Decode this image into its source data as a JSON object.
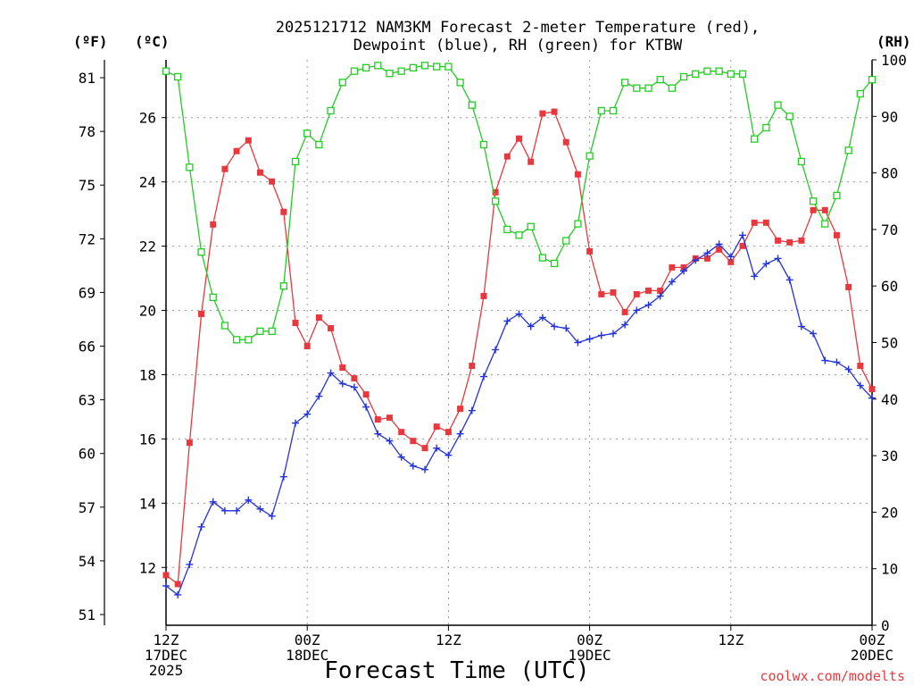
{
  "chart_data": {
    "type": "line",
    "title": [
      "2025121712 NAM3KM Forecast 2-meter Temperature (red),",
      "Dewpoint (blue), RH (green) for KTBW"
    ],
    "xlabel": "Forecast Time (UTC)",
    "watermark": "coolwx.com/modelts",
    "axis_units": {
      "fahrenheit": "(ºF)",
      "celsius": "(ºC)",
      "rh": "(RH)"
    },
    "x_range_hours": [
      0,
      60
    ],
    "x_ticks": [
      {
        "hour": 0,
        "lines": [
          "12Z",
          "17DEC",
          "2025"
        ]
      },
      {
        "hour": 12,
        "lines": [
          "00Z",
          "18DEC"
        ]
      },
      {
        "hour": 24,
        "lines": [
          "12Z"
        ]
      },
      {
        "hour": 36,
        "lines": [
          "00Z",
          "19DEC"
        ]
      },
      {
        "hour": 48,
        "lines": [
          "12Z"
        ]
      },
      {
        "hour": 60,
        "lines": [
          "00Z",
          "20DEC"
        ]
      }
    ],
    "y_left_f": {
      "range": [
        50.4,
        82.0
      ],
      "ticks": [
        51,
        54,
        57,
        60,
        63,
        66,
        69,
        72,
        75,
        78,
        81
      ]
    },
    "y_left_c": {
      "range": [
        10.2,
        27.8
      ],
      "ticks": [
        12,
        14,
        16,
        18,
        20,
        22,
        24,
        26
      ]
    },
    "y_right_rh": {
      "range": [
        0,
        100
      ],
      "ticks": [
        0,
        10,
        20,
        30,
        40,
        50,
        60,
        70,
        80,
        90,
        100
      ]
    },
    "grid": true,
    "series": [
      {
        "name": "Temperature",
        "color": "#e8383d",
        "units": "F",
        "marker": "filled-square",
        "x": [
          0,
          1,
          2,
          3,
          4,
          5,
          6,
          7,
          8,
          9,
          10,
          11,
          12,
          13,
          14,
          15,
          16,
          17,
          18,
          19,
          20,
          21,
          22,
          23,
          24,
          25,
          26,
          27,
          28,
          29,
          30,
          31,
          32,
          33,
          34,
          35,
          36,
          37,
          38,
          39,
          40,
          41,
          42,
          43,
          44,
          45,
          46,
          47,
          48,
          49,
          50,
          51,
          52,
          53,
          54,
          55,
          56,
          57,
          58,
          59,
          60
        ],
        "values": [
          53.2,
          52.7,
          60.6,
          67.8,
          72.8,
          75.9,
          76.9,
          77.5,
          75.7,
          75.2,
          73.5,
          67.3,
          66.0,
          67.6,
          67.0,
          64.8,
          64.2,
          63.3,
          61.9,
          62.0,
          61.2,
          60.7,
          60.3,
          61.5,
          61.2,
          62.5,
          64.9,
          68.8,
          74.6,
          76.6,
          77.6,
          76.3,
          79.0,
          79.1,
          77.4,
          75.6,
          71.3,
          68.9,
          69.0,
          67.9,
          68.9,
          69.1,
          69.1,
          70.4,
          70.4,
          70.9,
          70.9,
          71.4,
          70.7,
          71.6,
          72.9,
          72.9,
          71.9,
          71.8,
          71.9,
          73.6,
          73.6,
          72.2,
          69.3,
          64.9,
          63.6
        ]
      },
      {
        "name": "Dewpoint",
        "color": "#2233dd",
        "units": "F",
        "marker": "plus",
        "x": [
          0,
          1,
          2,
          3,
          4,
          5,
          6,
          7,
          8,
          9,
          10,
          11,
          12,
          13,
          14,
          15,
          16,
          17,
          18,
          19,
          20,
          21,
          22,
          23,
          24,
          25,
          26,
          27,
          28,
          29,
          30,
          31,
          32,
          33,
          34,
          35,
          36,
          37,
          38,
          39,
          40,
          41,
          42,
          43,
          44,
          45,
          46,
          47,
          48,
          49,
          50,
          51,
          52,
          53,
          54,
          55,
          56,
          57,
          58,
          59,
          60
        ],
        "values": [
          52.6,
          52.1,
          53.8,
          55.9,
          57.3,
          56.8,
          56.8,
          57.4,
          56.9,
          56.5,
          58.7,
          61.7,
          62.2,
          63.2,
          64.5,
          63.9,
          63.7,
          62.6,
          61.1,
          60.7,
          59.8,
          59.3,
          59.1,
          60.3,
          59.9,
          61.1,
          62.4,
          64.3,
          65.8,
          67.4,
          67.8,
          67.1,
          67.6,
          67.1,
          67.0,
          66.2,
          66.4,
          66.6,
          66.7,
          67.2,
          68.0,
          68.3,
          68.8,
          69.6,
          70.2,
          70.8,
          71.2,
          71.7,
          71.0,
          72.2,
          69.9,
          70.6,
          70.9,
          69.7,
          67.1,
          66.7,
          65.2,
          65.1,
          64.7,
          63.8,
          63.1
        ]
      },
      {
        "name": "RH",
        "color": "#22cc22",
        "units": "%",
        "marker": "open-square",
        "x": [
          0,
          1,
          2,
          3,
          4,
          5,
          6,
          7,
          8,
          9,
          10,
          11,
          12,
          13,
          14,
          15,
          16,
          17,
          18,
          19,
          20,
          21,
          22,
          23,
          24,
          25,
          26,
          27,
          28,
          29,
          30,
          31,
          32,
          33,
          34,
          35,
          36,
          37,
          38,
          39,
          40,
          41,
          42,
          43,
          44,
          45,
          46,
          47,
          48,
          49,
          50,
          51,
          52,
          53,
          54,
          55,
          56,
          57,
          58,
          59,
          60
        ],
        "values": [
          98,
          97,
          81,
          66,
          58,
          53,
          50.5,
          50.5,
          52,
          52,
          60,
          82,
          87,
          85,
          91,
          96,
          98,
          98.6,
          99,
          97.6,
          98,
          98.6,
          99,
          98.8,
          98.8,
          96,
          92,
          85,
          75,
          70,
          69,
          70.5,
          65,
          64,
          68,
          71,
          83,
          91,
          91,
          96,
          95,
          95,
          96.5,
          95,
          97,
          97.5,
          98,
          98,
          97.5,
          97.5,
          86,
          88,
          92,
          90,
          82,
          75,
          71,
          76,
          84,
          94,
          96.5
        ]
      }
    ]
  }
}
